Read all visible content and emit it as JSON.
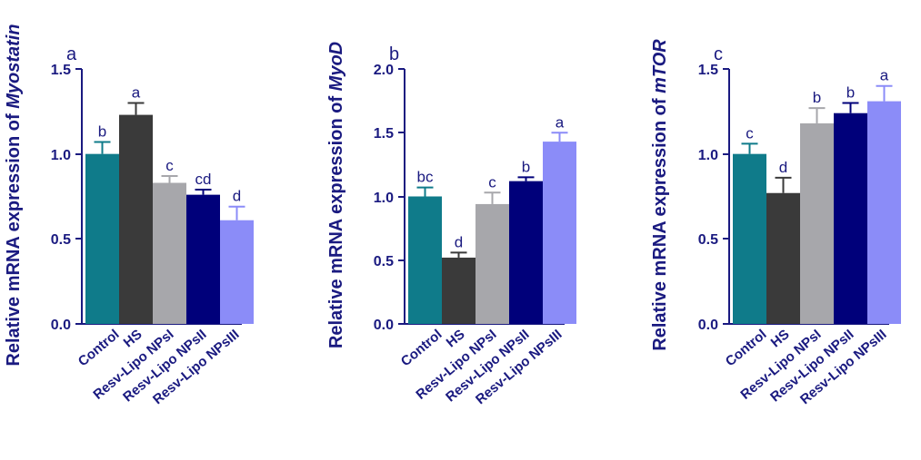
{
  "chart_data": [
    {
      "type": "bar",
      "panel_label": "a",
      "ylabel_prefix": "Relative mRNA expression of ",
      "ylabel_gene": "Myostatin",
      "ylim": [
        0,
        1.5
      ],
      "yticks": [
        "0.0",
        "0.5",
        "1.0",
        "1.5"
      ],
      "categories": [
        "Control",
        "HS",
        "Resv-Lipo NPsI",
        "Resv-Lipo NPsII",
        "Resv-Lipo NPsIII"
      ],
      "values": [
        1.0,
        1.23,
        0.83,
        0.76,
        0.61
      ],
      "errors": [
        0.07,
        0.07,
        0.04,
        0.03,
        0.08
      ],
      "significance": [
        "b",
        "a",
        "c",
        "cd",
        "d"
      ]
    },
    {
      "type": "bar",
      "panel_label": "b",
      "ylabel_prefix": "Relative mRNA expression of ",
      "ylabel_gene": "MyoD",
      "ylim": [
        0,
        2.0
      ],
      "yticks": [
        "0.0",
        "0.5",
        "1.0",
        "1.5",
        "2.0"
      ],
      "categories": [
        "Control",
        "HS",
        "Resv-Lipo NPsI",
        "Resv-Lipo NPsII",
        "Resv-Lipo NPsIII"
      ],
      "values": [
        1.0,
        0.52,
        0.94,
        1.12,
        1.43
      ],
      "errors": [
        0.07,
        0.04,
        0.09,
        0.03,
        0.07
      ],
      "significance": [
        "bc",
        "d",
        "c",
        "b",
        "a"
      ]
    },
    {
      "type": "bar",
      "panel_label": "c",
      "ylabel_prefix": "Relative mRNA expression of ",
      "ylabel_gene": "mTOR",
      "ylim": [
        0,
        1.5
      ],
      "yticks": [
        "0.0",
        "0.5",
        "1.0",
        "1.5"
      ],
      "categories": [
        "Control",
        "HS",
        "Resv-Lipo NPsI",
        "Resv-Lipo NPsII",
        "Resv-Lipo NPsIII"
      ],
      "values": [
        1.0,
        0.77,
        1.18,
        1.24,
        1.31
      ],
      "errors": [
        0.06,
        0.09,
        0.09,
        0.06,
        0.09
      ],
      "significance": [
        "c",
        "d",
        "b",
        "b",
        "a"
      ]
    }
  ],
  "colors": {
    "axis": "#1a1a80",
    "bars": [
      "#0f7b8a",
      "#3a3a3a",
      "#a7a7ab",
      "#00007a",
      "#8b8cf8"
    ]
  }
}
